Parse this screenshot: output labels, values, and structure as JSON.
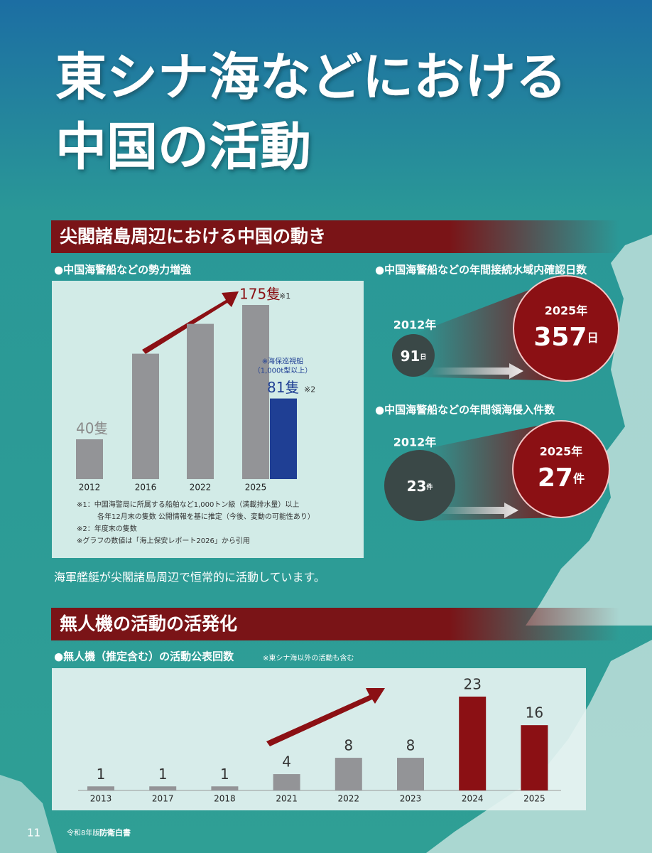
{
  "title_lines": [
    "東シナ海などにおける",
    "中国の活動"
  ],
  "section1": {
    "heading": "尖閣諸島周辺における中国の動き",
    "fleet_chart": {
      "caption": "●中国海警船などの勢力増強",
      "bars": [
        {
          "category": "2012",
          "value": 40,
          "color": "#939497",
          "value_label": "40隻"
        },
        {
          "category": "2016",
          "value": 126,
          "color": "#939497"
        },
        {
          "category": "2022",
          "value": 156,
          "color": "#939497"
        },
        {
          "category": "2025",
          "value": 175,
          "color": "#939497",
          "value_label": "175隻",
          "note": "※1"
        },
        {
          "category": null,
          "value": 81,
          "color": "#1f3f94",
          "value_label": "81隻",
          "note": "※2",
          "annotation": [
            "※海保巡視船",
            "（1,000t型以上）"
          ]
        }
      ],
      "notes": [
        "※1：中国海警局に所属する船舶など1,000トン級（満載排水量）以上",
        "各年12月末の隻数 公開情報を基に推定（今後、変動の可能性あり）",
        "※2：年度末の隻数",
        "※グラフの数値は「海上保安レポート2026」から引用"
      ]
    },
    "comparisons": [
      {
        "caption": "●中国海警船などの年間接続水域内確認日数",
        "from": {
          "year": "2012年",
          "value": 91,
          "unit": "日"
        },
        "to": {
          "year": "2025年",
          "value": 357,
          "unit": "日"
        }
      },
      {
        "caption": "●中国海警船などの年間領海侵入件数",
        "from": {
          "year": "2012年",
          "value": 23,
          "unit": "件"
        },
        "to": {
          "year": "2025年",
          "value": 27,
          "unit": "件"
        }
      }
    ],
    "statement": "海軍艦艇が尖閣諸島周辺で恒常的に活動しています。"
  },
  "section2": {
    "heading": "無人機の活動の活発化",
    "drone_chart": {
      "caption": "●無人機（推定含む）の活動公表回数",
      "note": "※東シナ海以外の活動も含む",
      "bars": [
        {
          "category": "2013",
          "value": 1,
          "color": "#939497"
        },
        {
          "category": "2017",
          "value": 1,
          "color": "#939497"
        },
        {
          "category": "2018",
          "value": 1,
          "color": "#939497"
        },
        {
          "category": "2021",
          "value": 4,
          "color": "#939497"
        },
        {
          "category": "2022",
          "value": 8,
          "color": "#939497"
        },
        {
          "category": "2023",
          "value": 8,
          "color": "#939497"
        },
        {
          "category": "2024",
          "value": 23,
          "color": "#8b1014"
        },
        {
          "category": "2025",
          "value": 16,
          "color": "#8b1014"
        }
      ]
    }
  },
  "footer": {
    "page": "11",
    "edition": "令和8年版",
    "publication": "防衛白書"
  }
}
